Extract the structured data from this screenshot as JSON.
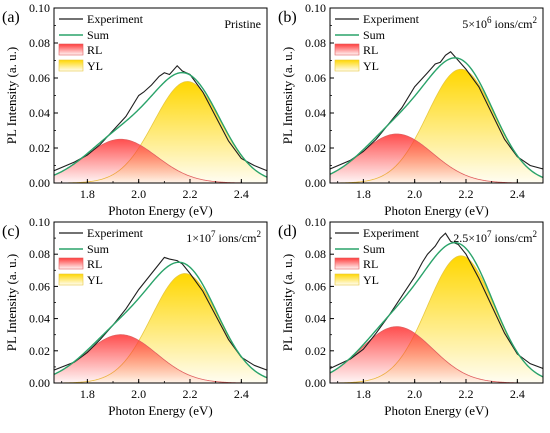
{
  "chart_data": [
    {
      "type": "area",
      "panel_label": "(a)",
      "annotation": "Pristine",
      "annotation_sup": "",
      "annotation_suffix": "",
      "xlabel": "Photon Energy (eV)",
      "ylabel": "PL Intensity (a. u.)",
      "xlim": [
        1.67,
        2.5
      ],
      "ylim": [
        0.0,
        0.1
      ],
      "xticks": [
        1.8,
        2.0,
        2.2,
        2.4
      ],
      "xtick_labels": [
        "1.8",
        "2.0",
        "2.2",
        "2.4"
      ],
      "yticks": [
        0.0,
        0.02,
        0.04,
        0.06,
        0.08,
        0.1
      ],
      "ytick_labels": [
        "0.00",
        "0.02",
        "0.04",
        "0.06",
        "0.08",
        "0.10"
      ],
      "legend": [
        "Experiment",
        "Sum",
        "RL",
        "YL"
      ],
      "series": [
        {
          "name": "RL",
          "peak_energy": 1.93,
          "amplitude": 0.025,
          "sigma": 0.14
        },
        {
          "name": "YL",
          "peak_energy": 2.19,
          "amplitude": 0.058,
          "sigma": 0.13
        }
      ],
      "experiment_points": {
        "x": [
          1.67,
          1.75,
          1.8,
          1.85,
          1.9,
          1.95,
          2.0,
          2.02,
          2.05,
          2.08,
          2.1,
          2.12,
          2.15,
          2.17,
          2.2,
          2.25,
          2.3,
          2.35,
          2.4,
          2.45,
          2.5
        ],
        "y": [
          0.007,
          0.012,
          0.016,
          0.022,
          0.03,
          0.038,
          0.05,
          0.052,
          0.056,
          0.061,
          0.063,
          0.062,
          0.067,
          0.064,
          0.062,
          0.052,
          0.038,
          0.024,
          0.014,
          0.01,
          0.007
        ]
      }
    },
    {
      "type": "area",
      "panel_label": "(b)",
      "annotation": "5×10",
      "annotation_sup": "6",
      "annotation_suffix": " ions/cm",
      "annotation_sup2": "2",
      "xlabel": "Photon Energy (eV)",
      "ylabel": "PL Intensity (a. u.)",
      "xlim": [
        1.67,
        2.5
      ],
      "ylim": [
        0.0,
        0.1
      ],
      "xticks": [
        1.8,
        2.0,
        2.2,
        2.4
      ],
      "xtick_labels": [
        "1.8",
        "2.0",
        "2.2",
        "2.4"
      ],
      "yticks": [
        0.0,
        0.02,
        0.04,
        0.06,
        0.08,
        0.1
      ],
      "ytick_labels": [
        "0.00",
        "0.02",
        "0.04",
        "0.06",
        "0.08",
        "0.10"
      ],
      "legend": [
        "Experiment",
        "Sum",
        "RL",
        "YL"
      ],
      "series": [
        {
          "name": "RL",
          "peak_energy": 1.93,
          "amplitude": 0.028,
          "sigma": 0.14
        },
        {
          "name": "YL",
          "peak_energy": 2.18,
          "amplitude": 0.065,
          "sigma": 0.13
        }
      ],
      "experiment_points": {
        "x": [
          1.67,
          1.75,
          1.8,
          1.85,
          1.9,
          1.95,
          2.0,
          2.05,
          2.08,
          2.1,
          2.12,
          2.14,
          2.17,
          2.2,
          2.25,
          2.3,
          2.35,
          2.4,
          2.45,
          2.5
        ],
        "y": [
          0.008,
          0.013,
          0.018,
          0.025,
          0.034,
          0.043,
          0.055,
          0.063,
          0.068,
          0.069,
          0.073,
          0.075,
          0.07,
          0.065,
          0.055,
          0.04,
          0.025,
          0.015,
          0.01,
          0.008
        ]
      }
    },
    {
      "type": "area",
      "panel_label": "(c)",
      "annotation": "1×10",
      "annotation_sup": "7",
      "annotation_suffix": " ions/cm",
      "annotation_sup2": "2",
      "xlabel": "Photon Energy (eV)",
      "ylabel": "PL Intensity (a. u.)",
      "xlim": [
        1.67,
        2.5
      ],
      "ylim": [
        0.0,
        0.1
      ],
      "xticks": [
        1.8,
        2.0,
        2.2,
        2.4
      ],
      "xtick_labels": [
        "1.8",
        "2.0",
        "2.2",
        "2.4"
      ],
      "yticks": [
        0.0,
        0.02,
        0.04,
        0.06,
        0.08,
        0.1
      ],
      "ytick_labels": [
        "0.00",
        "0.02",
        "0.04",
        "0.06",
        "0.08",
        "0.10"
      ],
      "legend": [
        "Experiment",
        "Sum",
        "RL",
        "YL"
      ],
      "series": [
        {
          "name": "RL",
          "peak_energy": 1.93,
          "amplitude": 0.03,
          "sigma": 0.14
        },
        {
          "name": "YL",
          "peak_energy": 2.18,
          "amplitude": 0.068,
          "sigma": 0.13
        }
      ],
      "experiment_points": {
        "x": [
          1.67,
          1.75,
          1.8,
          1.85,
          1.9,
          1.95,
          2.0,
          2.05,
          2.08,
          2.1,
          2.12,
          2.15,
          2.17,
          2.2,
          2.25,
          2.3,
          2.35,
          2.4,
          2.45,
          2.5
        ],
        "y": [
          0.008,
          0.013,
          0.019,
          0.027,
          0.036,
          0.046,
          0.058,
          0.068,
          0.074,
          0.078,
          0.077,
          0.076,
          0.074,
          0.068,
          0.057,
          0.042,
          0.027,
          0.016,
          0.011,
          0.008
        ]
      }
    },
    {
      "type": "area",
      "panel_label": "(d)",
      "annotation": "2.5×10",
      "annotation_sup": "7",
      "annotation_suffix": " ions/cm",
      "annotation_sup2": "2",
      "xlabel": "Photon Energy (eV)",
      "ylabel": "PL Intensity (a. u.)",
      "xlim": [
        1.67,
        2.5
      ],
      "ylim": [
        0.0,
        0.1
      ],
      "xticks": [
        1.8,
        2.0,
        2.2,
        2.4
      ],
      "xtick_labels": [
        "1.8",
        "2.0",
        "2.2",
        "2.4"
      ],
      "yticks": [
        0.0,
        0.02,
        0.04,
        0.06,
        0.08,
        0.1
      ],
      "ytick_labels": [
        "0.00",
        "0.02",
        "0.04",
        "0.06",
        "0.08",
        "0.10"
      ],
      "legend": [
        "Experiment",
        "Sum",
        "RL",
        "YL"
      ],
      "series": [
        {
          "name": "RL",
          "peak_energy": 1.93,
          "amplitude": 0.035,
          "sigma": 0.14
        },
        {
          "name": "YL",
          "peak_energy": 2.18,
          "amplitude": 0.079,
          "sigma": 0.13
        }
      ],
      "experiment_points": {
        "x": [
          1.67,
          1.75,
          1.8,
          1.85,
          1.9,
          1.95,
          2.0,
          2.03,
          2.05,
          2.08,
          2.1,
          2.12,
          2.14,
          2.17,
          2.2,
          2.25,
          2.3,
          2.35,
          2.4,
          2.45,
          2.5
        ],
        "y": [
          0.009,
          0.015,
          0.021,
          0.031,
          0.042,
          0.054,
          0.066,
          0.075,
          0.08,
          0.085,
          0.09,
          0.093,
          0.088,
          0.086,
          0.08,
          0.065,
          0.048,
          0.031,
          0.018,
          0.012,
          0.009
        ]
      }
    }
  ],
  "colors": {
    "experiment": "#1f1f1f",
    "sum": "#2aa36a",
    "rl_fill_top": "#ff3b3b",
    "rl_line": "#e06060",
    "yl_fill_top": "#ffd700",
    "yl_line": "#e8c840"
  }
}
